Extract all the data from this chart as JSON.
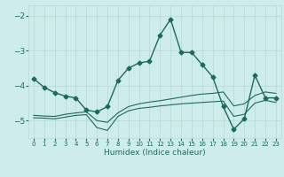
{
  "xlabel": "Humidex (Indice chaleur)",
  "bg_color": "#ceecea",
  "grid_color": "#b8d8d4",
  "line_color": "#1a6b5e",
  "xlim": [
    -0.5,
    23.5
  ],
  "ylim": [
    -5.5,
    -1.7
  ],
  "yticks": [
    -5,
    -4,
    -3,
    -2
  ],
  "xticks": [
    0,
    1,
    2,
    3,
    4,
    5,
    6,
    7,
    8,
    9,
    10,
    11,
    12,
    13,
    14,
    15,
    16,
    17,
    18,
    19,
    20,
    21,
    22,
    23
  ],
  "series": [
    {
      "x": [
        0,
        1,
        2,
        3,
        4,
        5,
        6,
        7,
        8,
        9,
        10,
        11,
        12,
        13,
        14,
        15,
        16,
        17,
        18,
        19,
        20,
        21,
        22,
        23
      ],
      "y": [
        -3.8,
        -4.05,
        -4.2,
        -4.3,
        -4.35,
        -4.7,
        -4.75,
        -4.6,
        -3.85,
        -3.5,
        -3.35,
        -3.3,
        -2.55,
        -2.1,
        -3.05,
        -3.05,
        -3.4,
        -3.75,
        -4.6,
        -5.25,
        -4.95,
        -3.7,
        -4.35,
        -4.35
      ],
      "marker": "D",
      "markersize": 2.5,
      "linewidth": 1.0,
      "has_markers": true
    },
    {
      "x": [
        0,
        1,
        2,
        3,
        4,
        5,
        6,
        7,
        8,
        9,
        10,
        11,
        12,
        13,
        14,
        15,
        16,
        17,
        18,
        19,
        20,
        21,
        22,
        23
      ],
      "y": [
        -4.85,
        -4.87,
        -4.88,
        -4.82,
        -4.78,
        -4.75,
        -5.0,
        -5.05,
        -4.78,
        -4.6,
        -4.52,
        -4.47,
        -4.43,
        -4.38,
        -4.33,
        -4.28,
        -4.24,
        -4.22,
        -4.18,
        -4.58,
        -4.52,
        -4.28,
        -4.18,
        -4.22
      ],
      "marker": null,
      "markersize": 0,
      "linewidth": 0.8,
      "has_markers": false
    },
    {
      "x": [
        0,
        1,
        2,
        3,
        4,
        5,
        6,
        7,
        8,
        9,
        10,
        11,
        12,
        13,
        14,
        15,
        16,
        17,
        18,
        19,
        20,
        21,
        22,
        23
      ],
      "y": [
        -4.92,
        -4.93,
        -4.95,
        -4.9,
        -4.85,
        -4.83,
        -5.2,
        -5.28,
        -4.88,
        -4.72,
        -4.65,
        -4.62,
        -4.58,
        -4.55,
        -4.52,
        -4.5,
        -4.48,
        -4.46,
        -4.44,
        -4.88,
        -4.82,
        -4.5,
        -4.42,
        -4.48
      ],
      "marker": null,
      "markersize": 0,
      "linewidth": 0.8,
      "has_markers": false
    }
  ]
}
